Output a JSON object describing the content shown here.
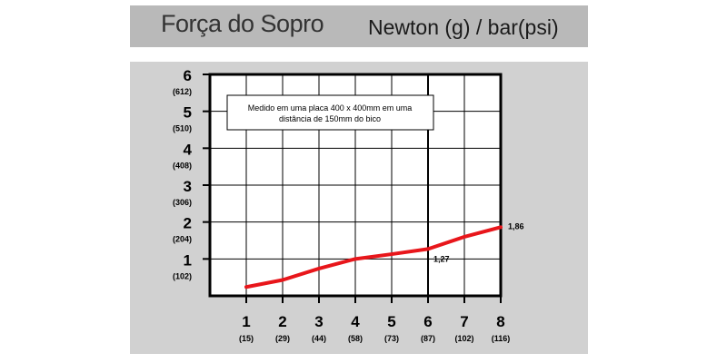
{
  "header": {
    "title": "Força do Sopro",
    "units": "Newton (g) / bar(psi)"
  },
  "colors": {
    "title_bar": "#b9b9b9",
    "panel": "#d1d1d1",
    "plot_bg": "#ffffff",
    "line": "#e8161b",
    "grid": "#000000"
  },
  "chart_data": {
    "type": "line",
    "x": [
      1,
      2,
      3,
      4,
      5,
      6,
      7,
      8
    ],
    "x_tick_labels": [
      "1",
      "2",
      "3",
      "4",
      "5",
      "6",
      "7",
      "8"
    ],
    "x_sub_labels": [
      "(15)",
      "(29)",
      "(44)",
      "(58)",
      "(73)",
      "(87)",
      "(102)",
      "(116)"
    ],
    "y_tick_labels": [
      "1",
      "2",
      "3",
      "4",
      "5",
      "6"
    ],
    "y_sub_labels": [
      "(102)",
      "(204)",
      "(306)",
      "(408)",
      "(510)",
      "(612)"
    ],
    "xlim": [
      0,
      8
    ],
    "ylim": [
      0,
      6
    ],
    "grid": true,
    "series": [
      {
        "values": [
          0.24,
          0.43,
          0.74,
          1.0,
          1.13,
          1.27,
          1.6,
          1.86
        ]
      }
    ],
    "data_labels": [
      {
        "x": 6,
        "text": "1,27"
      },
      {
        "x": 8,
        "text": "1,86"
      }
    ],
    "emphasized_gridline_x": 6,
    "annotation": {
      "lines": [
        "Medido em uma placa 400 x 400mm em uma",
        "distância de 150mm do bico"
      ]
    }
  }
}
